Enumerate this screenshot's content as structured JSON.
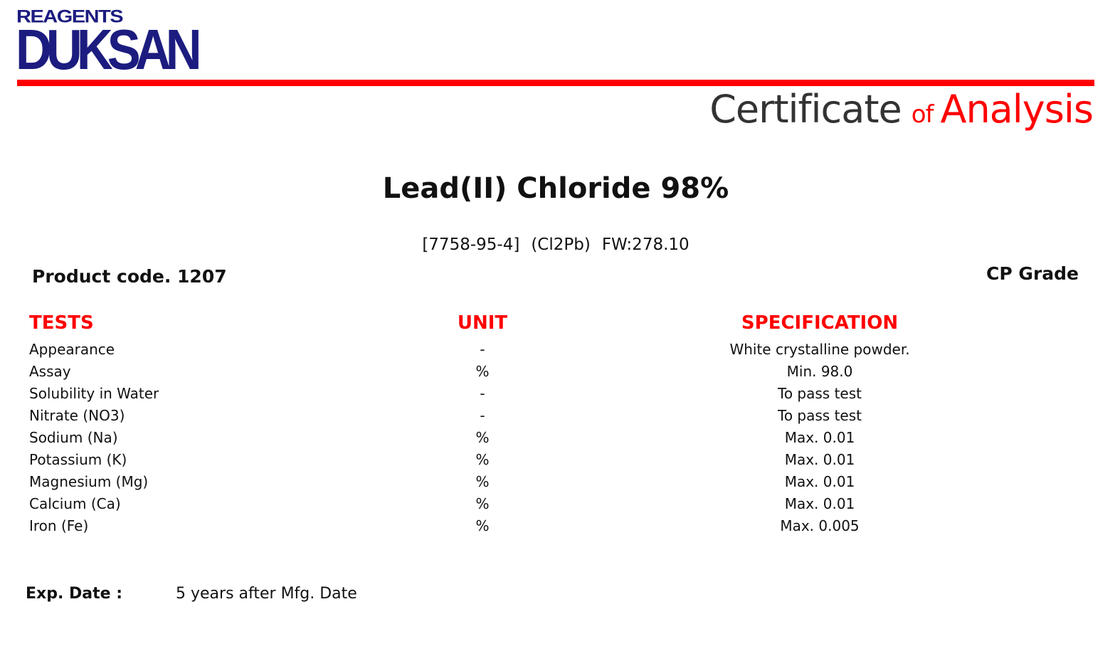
{
  "logo": {
    "top": "REAGENTS",
    "main": "DUKSAN",
    "color": "#1c1c80"
  },
  "header": {
    "certificate": "Certificate",
    "of": "of",
    "analysis": "Analysis",
    "accent": "#ff0000"
  },
  "product": {
    "name": "Lead(II) Chloride 98%",
    "cas": "[7758-95-4]",
    "formula": "(Cl2Pb)",
    "fw": "FW:278.10",
    "code": "Product code. 1207",
    "grade": "CP Grade"
  },
  "table": {
    "headers": {
      "tests": "TESTS",
      "unit": "UNIT",
      "spec": "SPECIFICATION"
    },
    "rows": [
      {
        "test": "Appearance",
        "unit": "-",
        "spec": "White crystalline powder."
      },
      {
        "test": "Assay",
        "unit": "%",
        "spec": "Min. 98.0"
      },
      {
        "test": "Solubility in Water",
        "unit": "-",
        "spec": "To pass test"
      },
      {
        "test": "Nitrate (NO3)",
        "unit": "-",
        "spec": "To pass test"
      },
      {
        "test": "Sodium (Na)",
        "unit": "%",
        "spec": "Max. 0.01"
      },
      {
        "test": "Potassium (K)",
        "unit": "%",
        "spec": "Max. 0.01"
      },
      {
        "test": "Magnesium (Mg)",
        "unit": "%",
        "spec": "Max. 0.01"
      },
      {
        "test": "Calcium (Ca)",
        "unit": "%",
        "spec": "Max. 0.01"
      },
      {
        "test": "Iron (Fe)",
        "unit": "%",
        "spec": "Max. 0.005"
      }
    ]
  },
  "expiry": {
    "label": "Exp. Date :",
    "value": "5 years after Mfg. Date"
  }
}
